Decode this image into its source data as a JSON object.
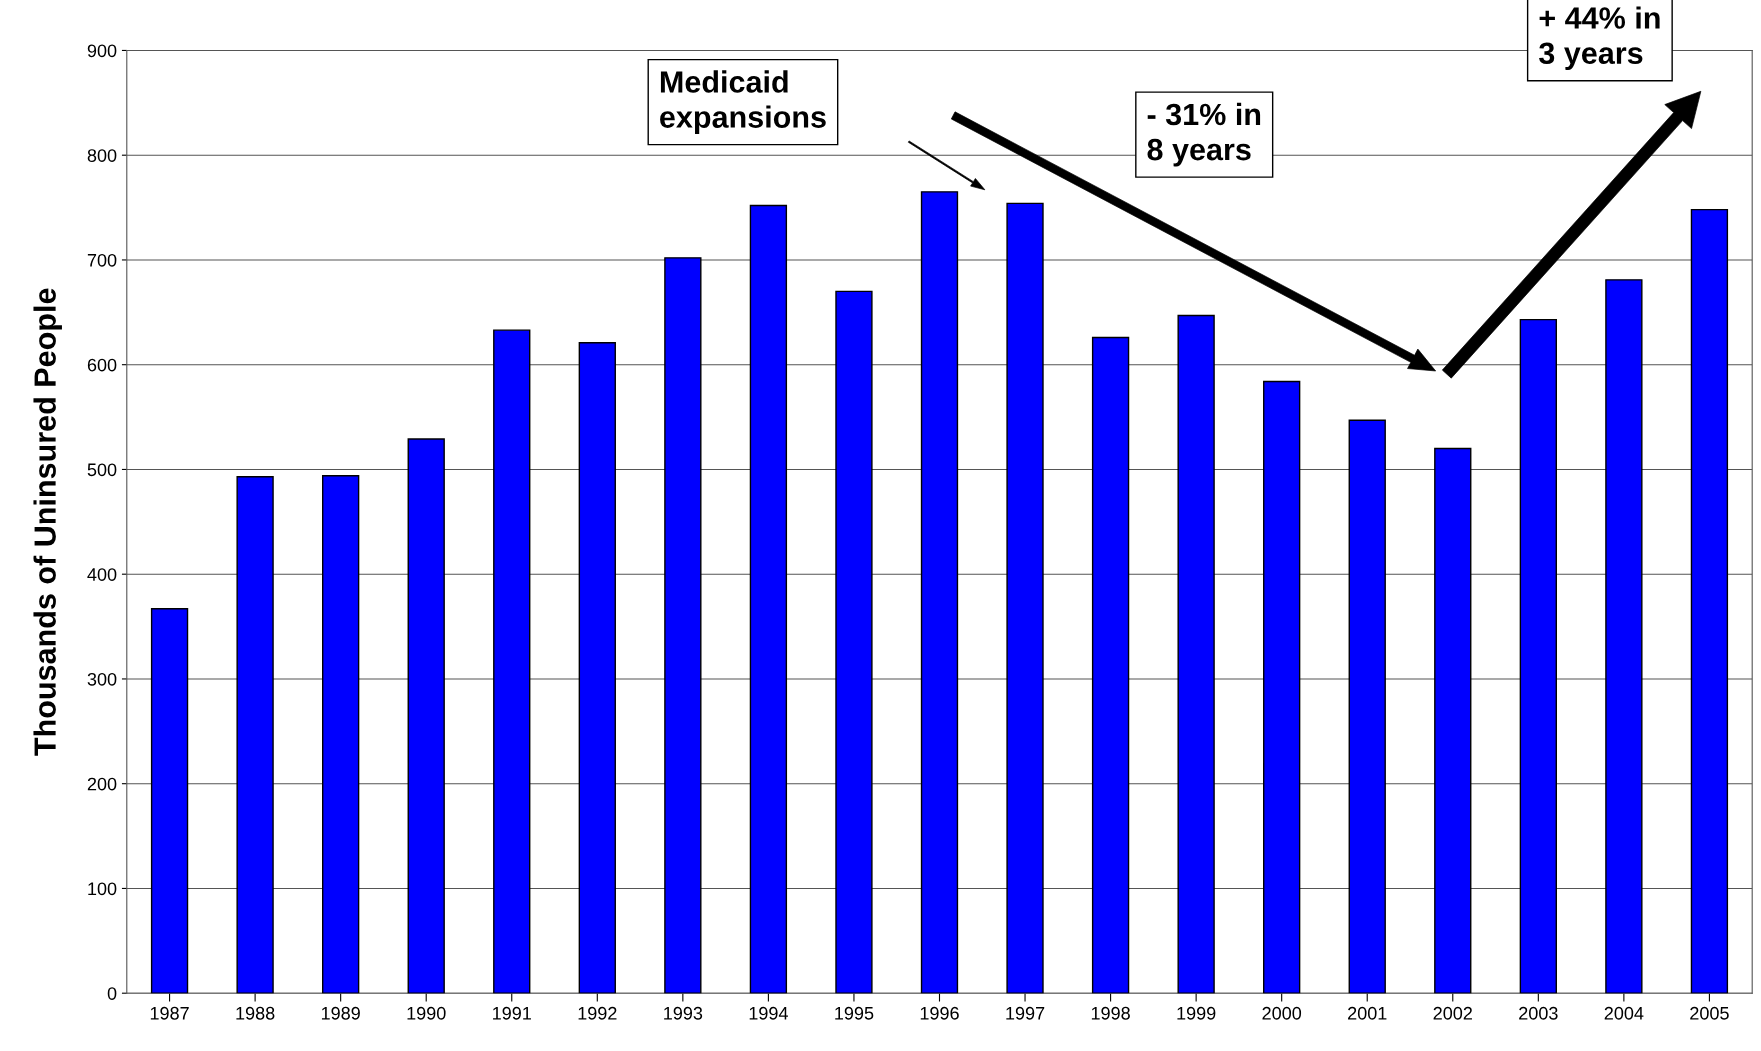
{
  "chart_data": {
    "type": "bar",
    "ylabel": "Thousands of Uninsured People",
    "categories": [
      "1987",
      "1988",
      "1989",
      "1990",
      "1991",
      "1992",
      "1993",
      "1994",
      "1995",
      "1996",
      "1997",
      "1998",
      "1999",
      "2000",
      "2001",
      "2002",
      "2003",
      "2004",
      "2005"
    ],
    "values": [
      367,
      493,
      494,
      529,
      633,
      621,
      702,
      752,
      670,
      765,
      754,
      626,
      647,
      584,
      547,
      520,
      643,
      681,
      748
    ],
    "color": "#0000ff",
    "ylim": [
      0,
      900
    ],
    "yticks": [
      0,
      100,
      200,
      300,
      400,
      500,
      600,
      700,
      800,
      900
    ],
    "grid": "y",
    "annotations": [
      "Medicaid\nexpansions",
      "- 31% in\n8 years",
      "+ 44% in\n3 years"
    ]
  }
}
